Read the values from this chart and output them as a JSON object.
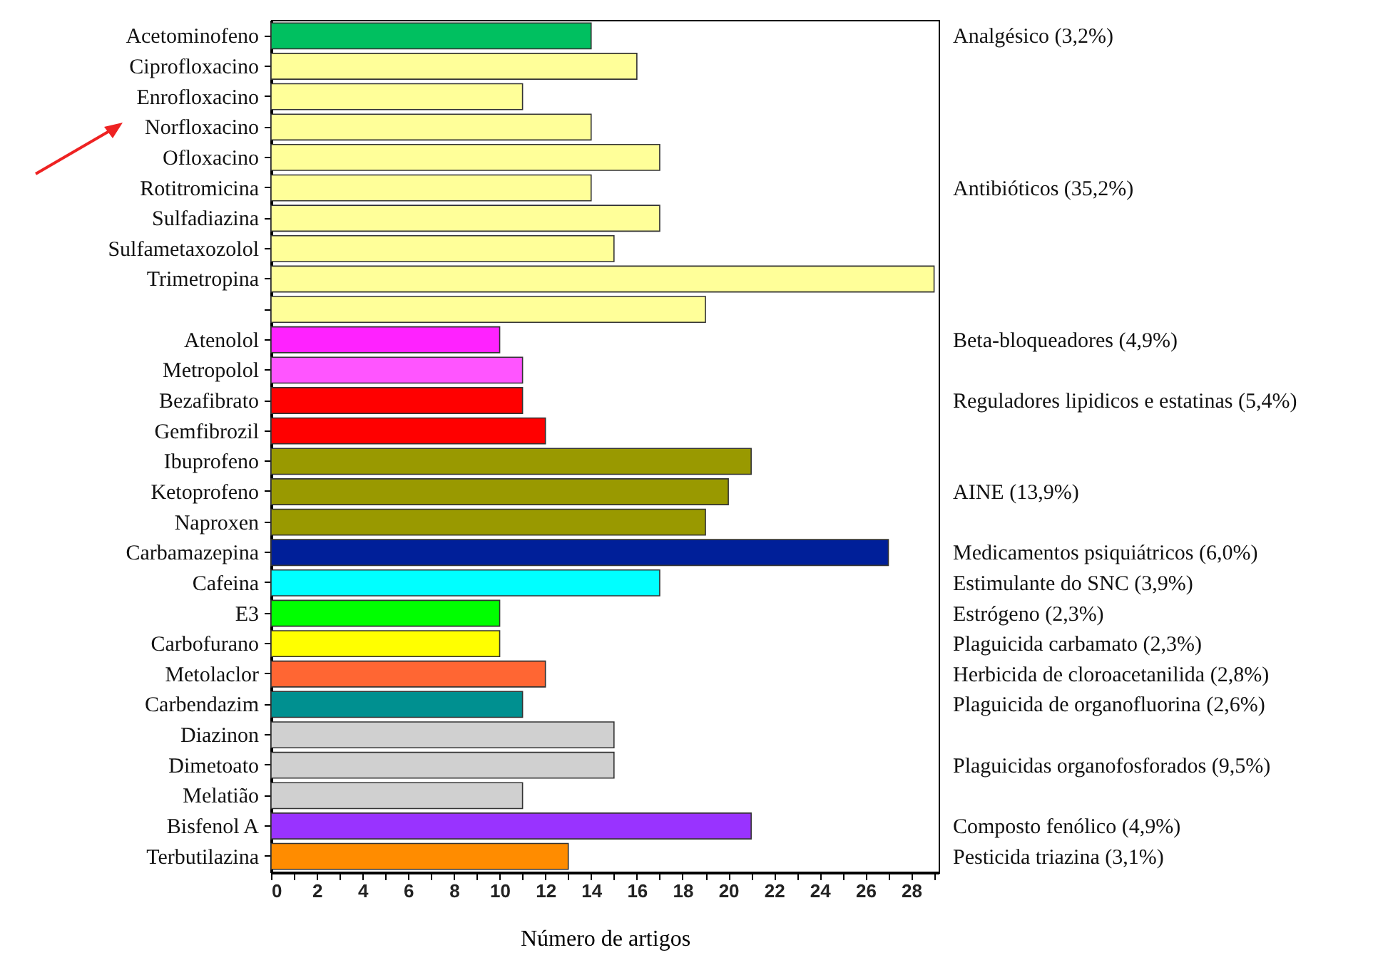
{
  "chart_data": {
    "type": "bar",
    "orientation": "horizontal",
    "xlabel": "Número de artigos",
    "categories": [
      "Acetominofeno",
      "Ciprofloxacino",
      "Enrofloxacino",
      "Norfloxacino",
      "Ofloxacino",
      "Rotitromicina",
      "Sulfadiazina",
      "Sulfametaxozolol",
      "Trimetropina",
      null,
      "Atenolol",
      "Metropolol",
      "Bezafibrato",
      "Gemfibrozil",
      "Ibuprofeno",
      "Ketoprofeno",
      "Naproxen",
      "Carbamazepina",
      "Cafeina",
      "E3",
      "Carbofurano",
      "Metolaclor",
      "Carbendazim",
      "Diazinon",
      "Dimetoato",
      "Melatião",
      "Bisfenol A",
      "Terbutilazina"
    ],
    "values": [
      14,
      16,
      11,
      14,
      17,
      14,
      17,
      15,
      29,
      19,
      10,
      11,
      11,
      12,
      21,
      20,
      19,
      27,
      17,
      10,
      10,
      12,
      11,
      15,
      15,
      11,
      21,
      13
    ],
    "colors": [
      "#00c060",
      "#ffff99",
      "#ffff99",
      "#ffff99",
      "#ffff99",
      "#ffff99",
      "#ffff99",
      "#ffff99",
      "#ffff99",
      "#ffff99",
      "#ff22ff",
      "#ff55ff",
      "#ff0000",
      "#ff0000",
      "#999900",
      "#999900",
      "#999900",
      "#001f99",
      "#00ffff",
      "#00ff00",
      "#ffff00",
      "#ff6633",
      "#009090",
      "#d0d0d0",
      "#d0d0d0",
      "#d0d0d0",
      "#9933ff",
      "#ff8c00"
    ],
    "xlim": [
      0,
      29.2
    ],
    "xticks": [
      0,
      {
        "value": 1,
        "label": null
      },
      2,
      {
        "value": 3,
        "label": null
      },
      4,
      {
        "value": 5,
        "label": null
      },
      6,
      {
        "value": 7,
        "label": null
      },
      8,
      {
        "value": 9,
        "label": null
      },
      10,
      {
        "value": 11,
        "label": null
      },
      12,
      {
        "value": 13,
        "label": null
      },
      14,
      {
        "value": 15,
        "label": null
      },
      16,
      {
        "value": 17,
        "label": null
      },
      18,
      {
        "value": 19,
        "label": null
      },
      20,
      {
        "value": 21,
        "label": null
      },
      22,
      {
        "value": 23,
        "label": null
      },
      24,
      {
        "value": 25,
        "label": null
      },
      26,
      {
        "value": 27,
        "label": null
      },
      28,
      {
        "value": 29,
        "label": null
      }
    ],
    "annotations": [
      "Analgésico (3,2%)",
      "Antibióticos  (35,2%)",
      "Beta-bloqueadores (4,9%)",
      "Reguladores lipidicos  e estatinas (5,4%)",
      "AINE (13,9%)",
      "Medicamentos psiquiátricos  (6,0%)",
      "Estimulante  do SNC (3,9%)",
      "Estrógeno (2,3%)",
      "Plaguicida  carbamato (2,3%)",
      "Herbicida de cloroacetanilida  (2,8%)",
      "Plaguicida  de organofluorina  (2,6%)",
      "Plaguicidas  organofosforados (9,5%)",
      "Composto  fenólico  (4,9%)",
      "Pesticida triazina  (3,1%)"
    ]
  }
}
